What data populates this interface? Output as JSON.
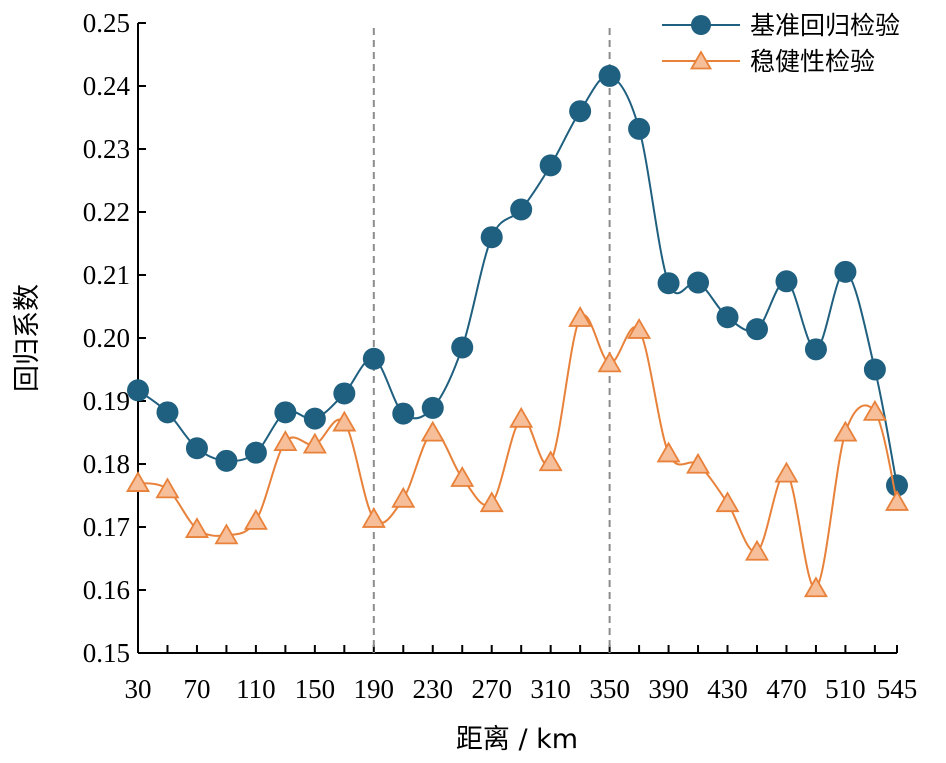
{
  "chart_data": {
    "type": "line",
    "xlabel": "距离 / km",
    "ylabel": "回归系数",
    "ylim": [
      0.15,
      0.25
    ],
    "yticks": [
      "0.15",
      "0.16",
      "0.17",
      "0.18",
      "0.19",
      "0.20",
      "0.21",
      "0.22",
      "0.23",
      "0.24",
      "0.25"
    ],
    "xticks": [
      "30",
      "70",
      "110",
      "150",
      "190",
      "230",
      "270",
      "310",
      "350",
      "390",
      "430",
      "470",
      "510",
      "545"
    ],
    "x": [
      30,
      50,
      70,
      90,
      110,
      130,
      150,
      170,
      190,
      210,
      230,
      250,
      270,
      290,
      310,
      330,
      350,
      370,
      390,
      410,
      430,
      450,
      470,
      490,
      510,
      530,
      545
    ],
    "vlines": [
      190,
      350
    ],
    "legend_position": "top-right",
    "grid": false,
    "series": [
      {
        "name": "基准回归检验",
        "color": "#1f5f7f",
        "marker": "circle",
        "values": [
          0.1917,
          0.1882,
          0.1825,
          0.1805,
          0.1818,
          0.1882,
          0.1872,
          0.1912,
          0.1967,
          0.188,
          0.1889,
          0.1985,
          0.216,
          0.2204,
          0.2274,
          0.236,
          0.2416,
          0.2332,
          0.2087,
          0.2088,
          0.2033,
          0.2014,
          0.209,
          0.1982,
          0.2105,
          0.195,
          0.1766
        ]
      },
      {
        "name": "稳健性检验",
        "color": "#e8813a",
        "marker": "triangle",
        "values": [
          0.177,
          0.176,
          0.1697,
          0.1687,
          0.171,
          0.1835,
          0.1831,
          0.1866,
          0.1713,
          0.1745,
          0.185,
          0.1778,
          0.1738,
          0.1872,
          0.1803,
          0.2032,
          0.196,
          0.2013,
          0.1817,
          0.1799,
          0.1738,
          0.1661,
          0.1785,
          0.1603,
          0.185,
          0.1883,
          0.174
        ]
      }
    ]
  }
}
